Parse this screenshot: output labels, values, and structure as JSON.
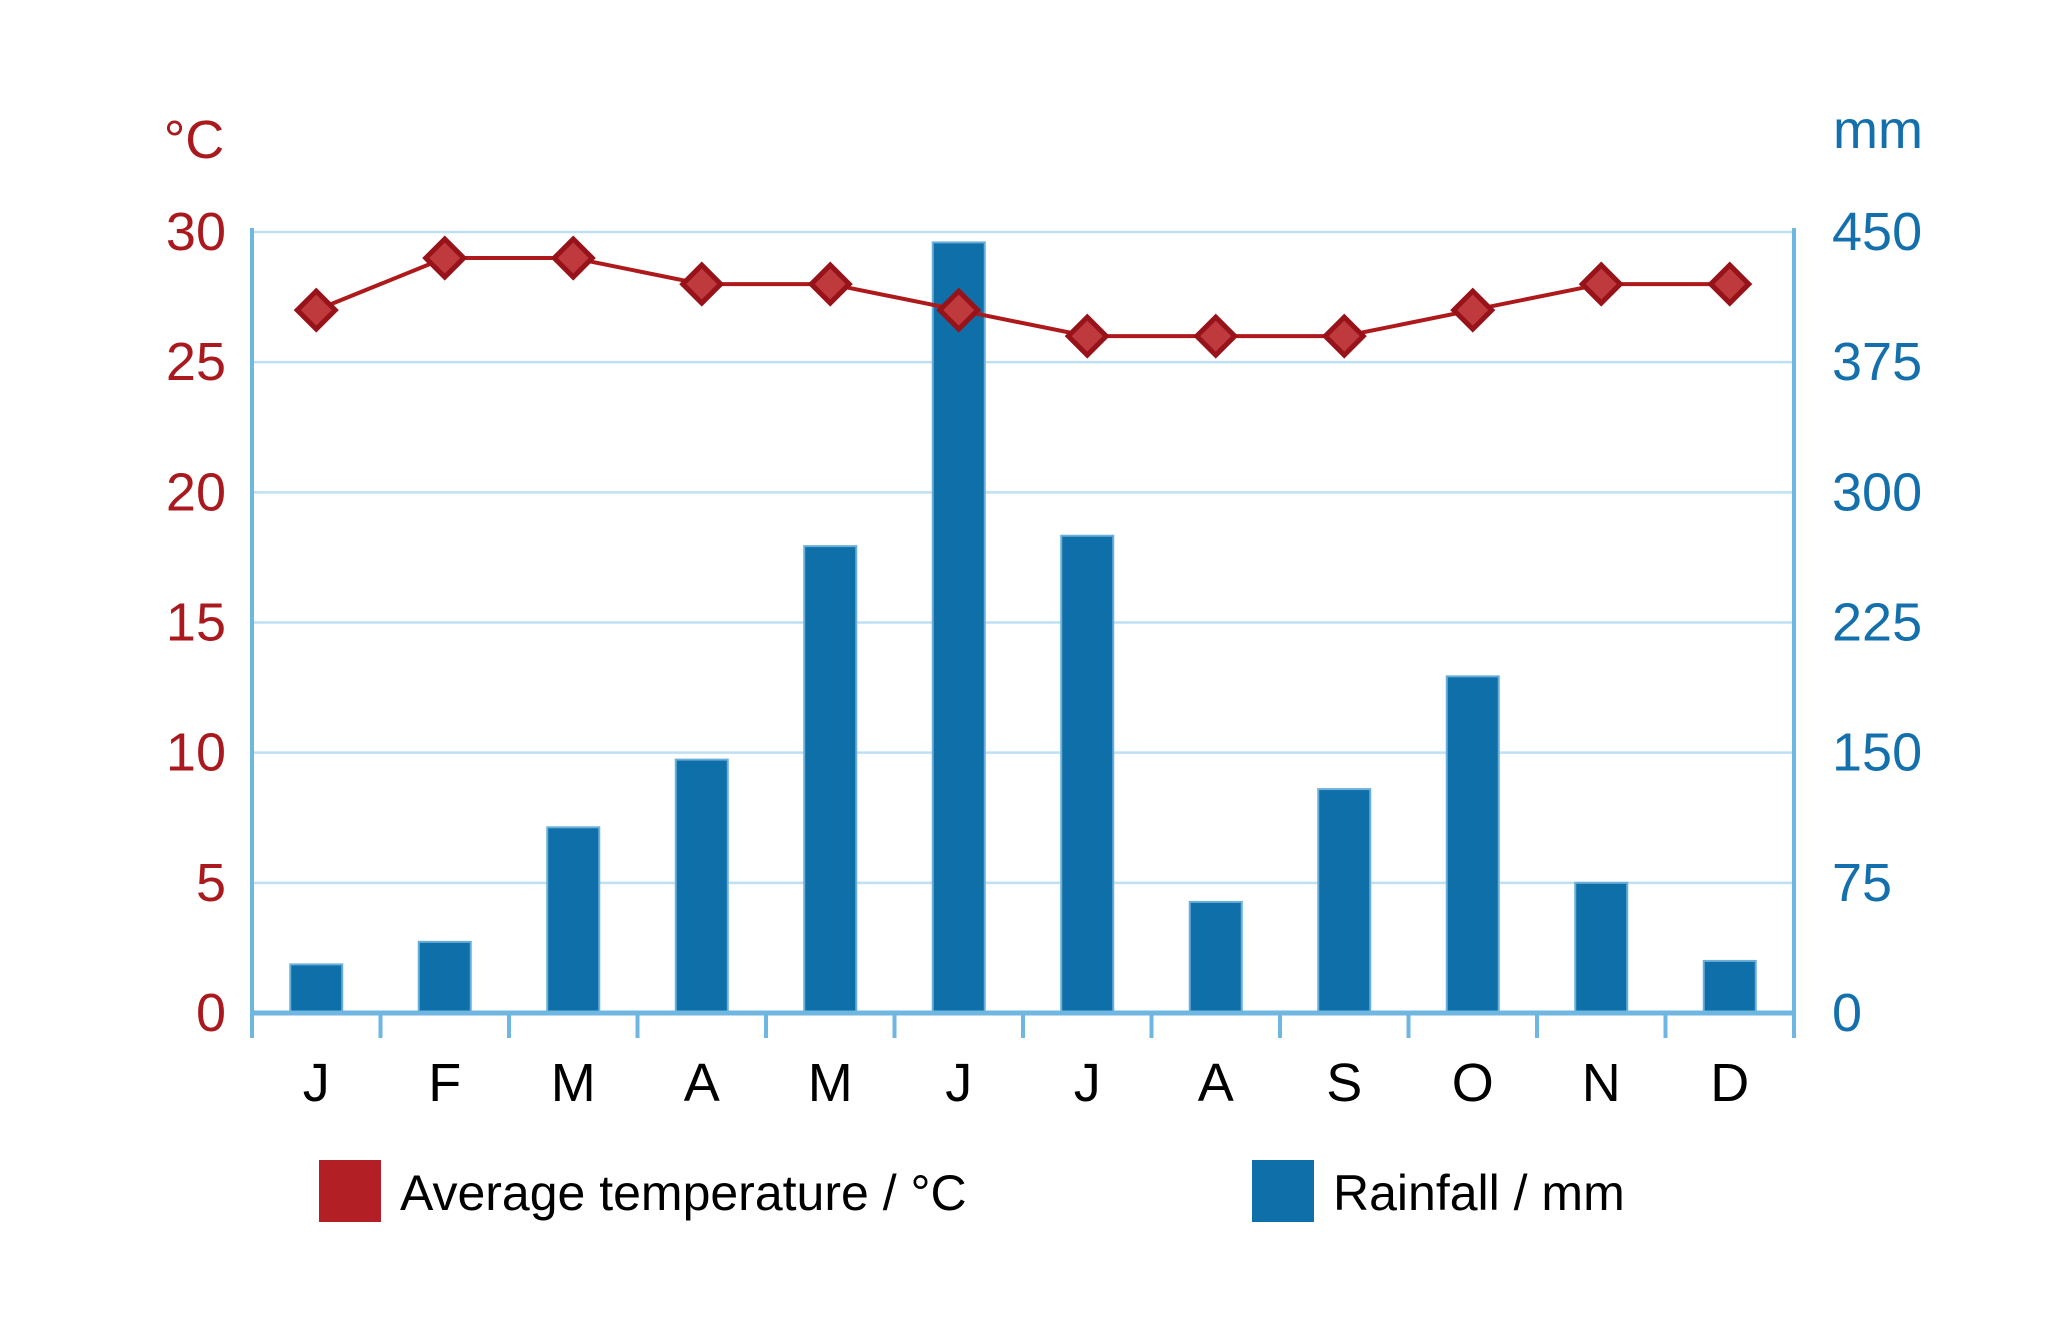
{
  "figure": {
    "aria_label": "Climate graph showing average monthly temperature and rainfall"
  },
  "chart_data": {
    "type": "combo",
    "subtypes": [
      "line",
      "bar"
    ],
    "title": "",
    "categories": [
      "J",
      "F",
      "M",
      "A",
      "M",
      "J",
      "J",
      "A",
      "S",
      "O",
      "N",
      "D"
    ],
    "series": [
      {
        "name": "Average temperature / °C",
        "type": "line",
        "axis": "left",
        "unit": "°C",
        "marker": "diamond",
        "values": [
          27,
          29,
          29,
          28,
          28,
          27,
          26,
          26,
          26,
          27,
          28,
          28
        ]
      },
      {
        "name": "Rainfall / mm",
        "type": "bar",
        "axis": "right",
        "unit": "mm",
        "values": [
          28,
          41,
          107,
          146,
          269,
          444,
          275,
          64,
          129,
          194,
          75,
          30
        ]
      }
    ],
    "left_axis": {
      "unit": "°C",
      "min": 0,
      "max": 30,
      "step": 5,
      "tick_labels": [
        "30",
        "25",
        "20",
        "15",
        "10",
        "5",
        "0"
      ]
    },
    "right_axis": {
      "unit": "mm",
      "min": 0,
      "max": 450,
      "step": 75,
      "tick_labels": [
        "450",
        "375",
        "300",
        "225",
        "150",
        "75",
        "0"
      ]
    },
    "grid": true,
    "legend_position": "bottom",
    "legend": [
      {
        "label": "Average temperature / °C",
        "swatch_color": "#B22025"
      },
      {
        "label": "Rainfall / mm",
        "swatch_color": "#0F6FA9"
      }
    ]
  },
  "colors": {
    "background": "#ffffff",
    "bar_fill": "#0F6FA9",
    "bar_stroke": "#69AFDA",
    "gridline": "#BEE0F2",
    "axis": "#6FB6E1",
    "temp_line": "#AE1A1C",
    "marker_fill": "#BE3A3C",
    "marker_stroke": "#98121A",
    "left_tick_text": "#A9191D",
    "right_tick_text": "#1470AD",
    "month_text": "#000000",
    "legend_text": "#000000"
  }
}
